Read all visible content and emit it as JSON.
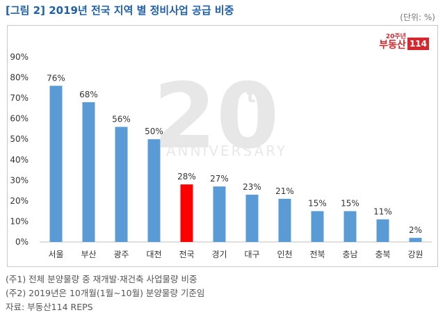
{
  "header": {
    "title": "[그림 2] 2019년 전국 지역 별 정비사업 공급 비중",
    "unit": "(단위: %)"
  },
  "logo": {
    "small": "20주년",
    "main": "부동산",
    "box": "114"
  },
  "watermark": {
    "number": "20",
    "suffix": "th",
    "text": "ANNIVERSARY"
  },
  "chart_data": {
    "type": "bar",
    "categories": [
      "서울",
      "부산",
      "광주",
      "대전",
      "전국",
      "경기",
      "대구",
      "인천",
      "전북",
      "충남",
      "충북",
      "강원"
    ],
    "values": [
      76,
      68,
      56,
      50,
      28,
      27,
      23,
      21,
      15,
      15,
      11,
      2
    ],
    "data_labels": [
      "76%",
      "68%",
      "56%",
      "50%",
      "28%",
      "27%",
      "23%",
      "21%",
      "15%",
      "15%",
      "11%",
      "2%"
    ],
    "yticks": [
      "0%",
      "10%",
      "20%",
      "30%",
      "40%",
      "50%",
      "60%",
      "70%",
      "80%",
      "90%"
    ],
    "ylim": [
      0,
      90
    ],
    "highlight_index": 4,
    "colors": {
      "bar": "#5b9bd5",
      "highlight": "#ff0000"
    },
    "grid": false,
    "title": "",
    "xlabel": "",
    "ylabel": ""
  },
  "notes": [
    "(주1) 전체 분양물량 중 재개발·재건축 사업물량 비중",
    "(주2) 2019년은 10개월(1월~10월) 분양물량 기준임",
    "자료: 부동산114 REPS"
  ]
}
